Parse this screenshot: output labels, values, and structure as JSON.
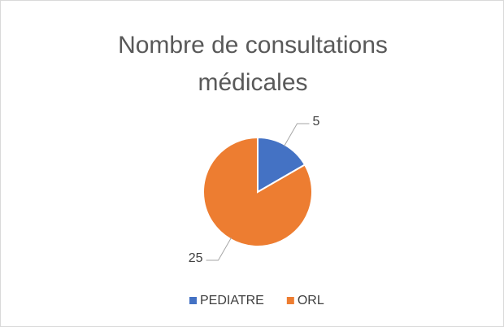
{
  "chart_data": {
    "type": "pie",
    "title": "Nombre de consultations médicales",
    "categories": [
      "PEDIATRE",
      "ORL"
    ],
    "values": [
      5,
      25
    ],
    "colors": [
      "#4472c4",
      "#ed7d31"
    ],
    "legend": "bottom"
  }
}
